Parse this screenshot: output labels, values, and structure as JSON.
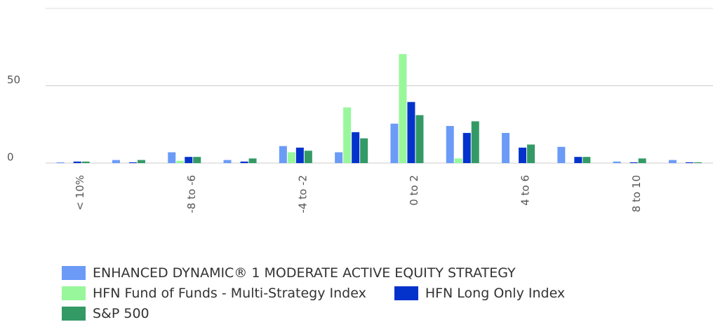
{
  "chart_data": {
    "type": "bar",
    "categories": [
      "< 10%",
      null,
      "-8 to -6",
      null,
      "-4 to -2",
      null,
      "0 to 2",
      null,
      "4 to 6",
      null,
      "8 to 10",
      null
    ],
    "series": [
      {
        "name": "ENHANCED DYNAMIC® 1 MODERATE ACTIVE EQUITY STRATEGY",
        "color": "#6b9bf7",
        "values": [
          0.5,
          2,
          7,
          2,
          11,
          7,
          25.5,
          24,
          19.5,
          10.5,
          1,
          2
        ]
      },
      {
        "name": "HFN Fund of Funds - Multi-Strategy Index",
        "color": "#99f79b",
        "values": [
          0,
          0,
          1.5,
          0,
          7,
          36,
          70.5,
          3,
          0,
          0,
          0,
          0
        ]
      },
      {
        "name": "HFN Long Only Index",
        "color": "#0433cc",
        "values": [
          1,
          0.5,
          4,
          1,
          10,
          20,
          39.5,
          19.5,
          10,
          4,
          0.5,
          0.5
        ]
      },
      {
        "name": "S&P 500",
        "color": "#339a66",
        "values": [
          1,
          2,
          4,
          3,
          8,
          16,
          31,
          27,
          12,
          4,
          3,
          0.5
        ]
      }
    ],
    "ylim": [
      0,
      100
    ],
    "yticks": [
      0,
      50
    ],
    "grid": true
  }
}
